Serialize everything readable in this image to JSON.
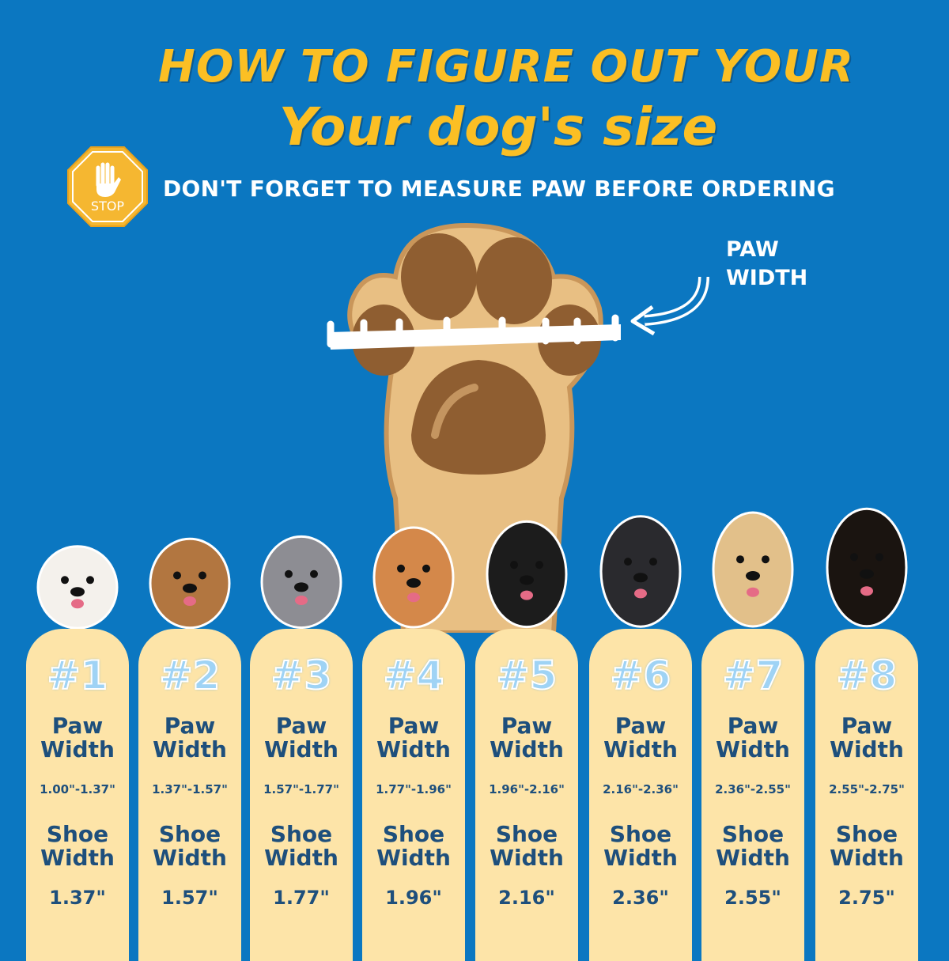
{
  "header": {
    "title_line1": "HOW TO FIGURE OUT YOUR",
    "title_line2": "Your dog's size",
    "stop_sign_text": "STOP",
    "subtitle": "DON'T FORGET TO MEASURE PAW BEFORE ORDERING"
  },
  "paw_diagram": {
    "label_line1": "PAW",
    "label_line2": "WIDTH"
  },
  "colors": {
    "background": "#0b77c1",
    "title": "#fbbf24",
    "card": "#fde4a8",
    "card_text": "#1e4f7c",
    "number": "#9fd3f5"
  },
  "sizes": [
    {
      "number": "#1",
      "paw_label_1": "Paw",
      "paw_label_2": "Width",
      "paw_range": "1.00\"-1.37\"",
      "shoe_label_1": "Shoe",
      "shoe_label_2": "Width",
      "shoe_width": "1.37\"",
      "dog_color": "#f4f1ec"
    },
    {
      "number": "#2",
      "paw_label_1": "Paw",
      "paw_label_2": "Width",
      "paw_range": "1.37\"-1.57\"",
      "shoe_label_1": "Shoe",
      "shoe_label_2": "Width",
      "shoe_width": "1.57\"",
      "dog_color": "#b27640"
    },
    {
      "number": "#3",
      "paw_label_1": "Paw",
      "paw_label_2": "Width",
      "paw_range": "1.57\"-1.77\"",
      "shoe_label_1": "Shoe",
      "shoe_label_2": "Width",
      "shoe_width": "1.77\"",
      "dog_color": "#8d8d93"
    },
    {
      "number": "#4",
      "paw_label_1": "Paw",
      "paw_label_2": "Width",
      "paw_range": "1.77\"-1.96\"",
      "shoe_label_1": "Shoe",
      "shoe_label_2": "Width",
      "shoe_width": "1.96\"",
      "dog_color": "#d4884a"
    },
    {
      "number": "#5",
      "paw_label_1": "Paw",
      "paw_label_2": "Width",
      "paw_range": "1.96\"-2.16\"",
      "shoe_label_1": "Shoe",
      "shoe_label_2": "Width",
      "shoe_width": "2.16\"",
      "dog_color": "#1c1c1c"
    },
    {
      "number": "#6",
      "paw_label_1": "Paw",
      "paw_label_2": "Width",
      "paw_range": "2.16\"-2.36\"",
      "shoe_label_1": "Shoe",
      "shoe_label_2": "Width",
      "shoe_width": "2.36\"",
      "dog_color": "#2a2a2e"
    },
    {
      "number": "#7",
      "paw_label_1": "Paw",
      "paw_label_2": "Width",
      "paw_range": "2.36\"-2.55\"",
      "shoe_label_1": "Shoe",
      "shoe_label_2": "Width",
      "shoe_width": "2.55\"",
      "dog_color": "#e2c08a"
    },
    {
      "number": "#8",
      "paw_label_1": "Paw",
      "paw_label_2": "Width",
      "paw_range": "2.55\"-2.75\"",
      "shoe_label_1": "Shoe",
      "shoe_label_2": "Width",
      "shoe_width": "2.75\"",
      "dog_color": "#1a1410"
    }
  ]
}
